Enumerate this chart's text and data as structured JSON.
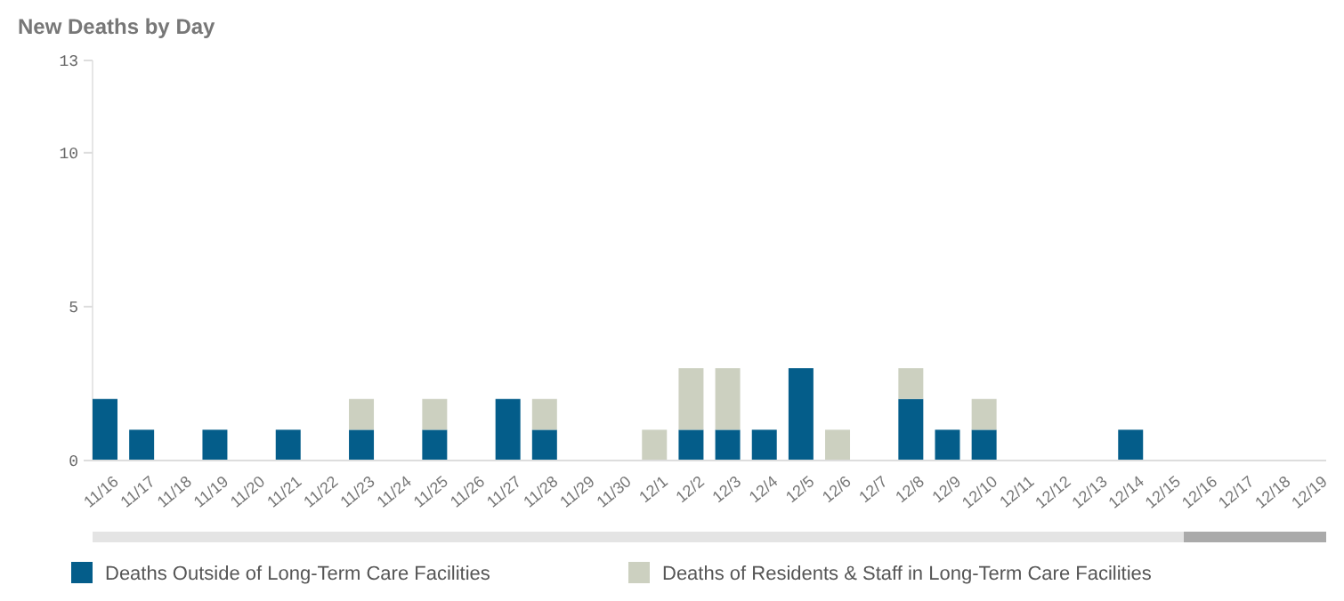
{
  "chart_data": {
    "type": "bar",
    "title": "New Deaths by Day",
    "stacked": true,
    "legend": "bottom",
    "grid": false,
    "categories": [
      "11/16",
      "11/17",
      "11/18",
      "11/19",
      "11/20",
      "11/21",
      "11/22",
      "11/23",
      "11/24",
      "11/25",
      "11/26",
      "11/27",
      "11/28",
      "11/29",
      "11/30",
      "12/1",
      "12/2",
      "12/3",
      "12/4",
      "12/5",
      "12/6",
      "12/7",
      "12/8",
      "12/9",
      "12/10",
      "12/11",
      "12/12",
      "12/13",
      "12/14",
      "12/15",
      "12/16",
      "12/17",
      "12/18",
      "12/19"
    ],
    "ylim": [
      0,
      13
    ],
    "yticks": [
      0,
      5,
      10,
      13
    ],
    "series": [
      {
        "name": "Deaths Outside of Long-Term Care Facilities",
        "color": "#045d8a",
        "values": [
          2,
          1,
          0,
          1,
          0,
          1,
          0,
          1,
          0,
          1,
          0,
          2,
          1,
          0,
          0,
          0,
          1,
          1,
          1,
          3,
          0,
          0,
          2,
          1,
          1,
          0,
          0,
          0,
          1,
          0,
          0,
          0,
          0,
          0
        ]
      },
      {
        "name": "Deaths of Residents & Staff in Long-Term Care Facilities",
        "color": "#ccd0c0",
        "values": [
          0,
          0,
          0,
          0,
          0,
          0,
          0,
          1,
          0,
          1,
          0,
          0,
          1,
          0,
          0,
          1,
          2,
          2,
          0,
          0,
          1,
          0,
          1,
          0,
          1,
          0,
          0,
          0,
          0,
          0,
          0,
          0,
          0,
          0
        ]
      }
    ]
  }
}
